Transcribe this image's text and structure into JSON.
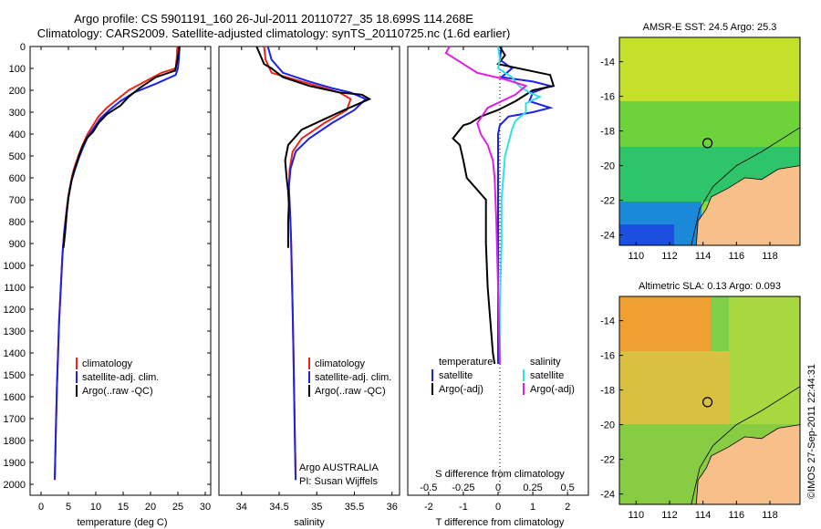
{
  "header": {
    "line1": "Argo profile: CS 5901191_160 26-Jul-2011 20110727_35 18.699S 114.268E",
    "line2": "Climatology: CARS2009. Satellite-adjusted climatology: synTS_20110725.nc (1.6d earlier)"
  },
  "depth_ticks": [
    "0",
    "100",
    "200",
    "300",
    "400",
    "500",
    "600",
    "700",
    "800",
    "900",
    "1000",
    "1100",
    "1200",
    "1300",
    "1400",
    "1500",
    "1600",
    "1700",
    "1800",
    "1900",
    "2000"
  ],
  "legend_profile": [
    {
      "label": "climatology",
      "color": "#e8261c"
    },
    {
      "label": "satellite-adj. clim.",
      "color": "#1c22e8"
    },
    {
      "label": "Argo(..raw -QC)",
      "color": "#000000"
    }
  ],
  "legend_diff": {
    "temp_header": "temperature",
    "sal_header": "salinity",
    "items_t": [
      {
        "label": "satellite",
        "color": "#1c22e8"
      },
      {
        "label": "Argo(-adj)",
        "color": "#000000"
      }
    ],
    "items_s": [
      {
        "label": "satellite",
        "color": "#33e0e0"
      },
      {
        "label": "Argo(-adj)",
        "color": "#e020e0"
      }
    ]
  },
  "annotation": {
    "line1": "Argo AUSTRALIA",
    "line2": "PI: Susan Wijffels"
  },
  "side_text": "©IMOS 27-Sep-2011 22:44:31",
  "maps": [
    {
      "title": "AMSR-E SST: 24.5 Argo: 25.3",
      "yticks": [
        "-14",
        "-16",
        "-18",
        "-20",
        "-22",
        "-24"
      ],
      "xticks": [
        "110",
        "112",
        "114",
        "116",
        "118"
      ]
    },
    {
      "title": "Altimetric SLA: 0.13 Argo: 0.093",
      "yticks": [
        "-14",
        "-16",
        "-18",
        "-20",
        "-22",
        "-24"
      ],
      "xticks": [
        "110",
        "112",
        "114",
        "116",
        "118"
      ]
    }
  ],
  "chart_data": [
    {
      "type": "line",
      "xlabel": "temperature (deg C)",
      "ylabel": "",
      "xlim": [
        -2,
        31
      ],
      "ylim": [
        0,
        2050
      ],
      "xticks": [
        "0",
        "5",
        "10",
        "15",
        "20",
        "25",
        "30"
      ],
      "series": [
        {
          "name": "climatology",
          "color": "#e8261c",
          "x": [
            24.9,
            24.8,
            24.6,
            22,
            19,
            16,
            14,
            12,
            10.5,
            9.5,
            8.5,
            7.6,
            6.8,
            6.0,
            5.6,
            5.0,
            4.6,
            4.2,
            3.9,
            3.6,
            3.3,
            3.1,
            2.9,
            2.7,
            2.5
          ],
          "y": [
            0,
            50,
            100,
            120,
            160,
            200,
            240,
            280,
            320,
            360,
            400,
            450,
            500,
            560,
            600,
            680,
            760,
            850,
            950,
            1100,
            1250,
            1400,
            1550,
            1750,
            1980
          ]
        },
        {
          "name": "satellite-adj. clim.",
          "color": "#1c22e8",
          "x": [
            25.3,
            25.2,
            25.0,
            24.6,
            21,
            17,
            14.5,
            12.5,
            10.8,
            9.7,
            8.6,
            7.7,
            6.9,
            6.1,
            5.6,
            5.0,
            4.6,
            4.2,
            3.9,
            3.6,
            3.3,
            3.1,
            2.9,
            2.7,
            2.5
          ],
          "y": [
            0,
            50,
            100,
            130,
            170,
            210,
            250,
            290,
            330,
            370,
            410,
            460,
            510,
            570,
            610,
            690,
            770,
            860,
            960,
            1110,
            1260,
            1410,
            1560,
            1760,
            1980
          ]
        },
        {
          "name": "Argo(..raw -QC)",
          "color": "#000000",
          "x": [
            25.3,
            25.0,
            24.5,
            21,
            18,
            16,
            14.5,
            12,
            10.5,
            9.5,
            8.3,
            7.5,
            6.8,
            6.0,
            5.5,
            5.0,
            4.7,
            4.4,
            4.1
          ],
          "y": [
            0,
            50,
            110,
            140,
            190,
            230,
            270,
            310,
            350,
            390,
            420,
            460,
            510,
            570,
            620,
            690,
            760,
            850,
            920
          ]
        }
      ]
    },
    {
      "type": "line",
      "xlabel": "salinity",
      "ylabel": "",
      "xlim": [
        33.7,
        36.1
      ],
      "ylim": [
        0,
        2050
      ],
      "xticks": [
        "34",
        "34.5",
        "35",
        "35.5",
        "36"
      ],
      "series": [
        {
          "name": "climatology",
          "color": "#e8261c",
          "x": [
            34.3,
            34.32,
            34.4,
            34.8,
            35.1,
            35.3,
            35.45,
            35.4,
            35.1,
            34.8,
            34.68,
            34.64,
            34.63,
            34.64,
            34.65,
            34.66,
            34.67,
            34.68,
            34.69,
            34.7,
            34.71,
            34.72
          ],
          "y": [
            0,
            60,
            120,
            160,
            190,
            210,
            240,
            290,
            350,
            420,
            480,
            560,
            640,
            720,
            800,
            900,
            1050,
            1200,
            1400,
            1600,
            1800,
            1980
          ]
        },
        {
          "name": "satellite-adj. clim.",
          "color": "#1c22e8",
          "x": [
            34.35,
            34.4,
            34.55,
            34.9,
            35.2,
            35.45,
            35.65,
            35.5,
            35.2,
            34.9,
            34.72,
            34.65,
            34.63,
            34.64,
            34.65,
            34.66,
            34.67,
            34.68,
            34.69,
            34.7,
            34.71,
            34.72
          ],
          "y": [
            0,
            60,
            120,
            160,
            190,
            210,
            240,
            290,
            350,
            420,
            480,
            560,
            640,
            720,
            800,
            900,
            1050,
            1200,
            1400,
            1600,
            1800,
            1980
          ]
        },
        {
          "name": "Argo(..raw -QC)",
          "color": "#000000",
          "x": [
            34.2,
            34.25,
            34.3,
            34.4,
            34.55,
            34.9,
            35.3,
            35.6,
            35.7,
            35.3,
            34.8,
            34.62,
            34.58,
            34.6,
            34.62,
            34.63,
            34.62,
            34.62
          ],
          "y": [
            0,
            40,
            80,
            100,
            140,
            180,
            210,
            220,
            240,
            300,
            380,
            450,
            520,
            600,
            660,
            720,
            800,
            920
          ]
        }
      ]
    },
    {
      "type": "line",
      "xlabel": "T difference from climatology",
      "title_top": "S difference from climatology",
      "ylabel": "",
      "xlim": [
        -2.6,
        2.6
      ],
      "ylim": [
        0,
        2050
      ],
      "xticks": [
        "-2",
        "-1",
        "0",
        "1",
        "2"
      ],
      "xticks_top": [
        "-0.5",
        "-0.25",
        "0",
        "0.25",
        "0.5"
      ],
      "series": [
        {
          "name": "temperature satellite",
          "color": "#1c22e8",
          "x": [
            0.1,
            0.05,
            0.4,
            0.1,
            1.0,
            1.5,
            1.0,
            0.9,
            1.5,
            1.0,
            0.3,
            0.05,
            0,
            0,
            0,
            0,
            0,
            0,
            0
          ],
          "y": [
            0,
            60,
            100,
            140,
            160,
            180,
            210,
            250,
            280,
            300,
            320,
            360,
            400,
            500,
            700,
            900,
            1100,
            1300,
            1450
          ]
        },
        {
          "name": "temperature Argo(-adj)",
          "color": "#000000",
          "x": [
            0.05,
            0.2,
            0.0,
            1.5,
            1.6,
            1.0,
            0.5,
            0,
            -0.5,
            -0.8,
            -1.0,
            -1.2,
            -1.3,
            -1.1,
            -1.0,
            -0.9,
            -0.35,
            -0.35,
            -0.3,
            -0.2,
            -0.15,
            -0.1
          ],
          "y": [
            0,
            40,
            80,
            130,
            180,
            200,
            250,
            290,
            320,
            350,
            360,
            400,
            420,
            450,
            520,
            600,
            700,
            900,
            1100,
            1300,
            1400,
            1450
          ]
        },
        {
          "name": "salinity satellite",
          "color": "#33e0e0",
          "x": [
            0.0,
            0.05,
            0.0,
            0.4,
            0.6,
            0.9,
            1.2,
            0.8,
            0.8,
            0.5,
            0.4,
            0.2,
            0.1,
            0.1,
            0.05,
            0.05
          ],
          "y": [
            0,
            60,
            100,
            140,
            180,
            210,
            230,
            260,
            300,
            340,
            380,
            500,
            700,
            900,
            1200,
            1450
          ]
        },
        {
          "name": "salinity Argo(-adj)",
          "color": "#e020e0",
          "x": [
            -1.4,
            -1.5,
            -1.0,
            -0.6,
            0.2,
            0.8,
            0.5,
            -0.3,
            -0.6,
            -0.5,
            -0.3,
            -0.15,
            -0.1,
            -0.05,
            0,
            0.05
          ],
          "y": [
            0,
            30,
            80,
            120,
            150,
            180,
            220,
            280,
            350,
            400,
            450,
            520,
            600,
            800,
            1100,
            1450
          ]
        }
      ]
    }
  ]
}
